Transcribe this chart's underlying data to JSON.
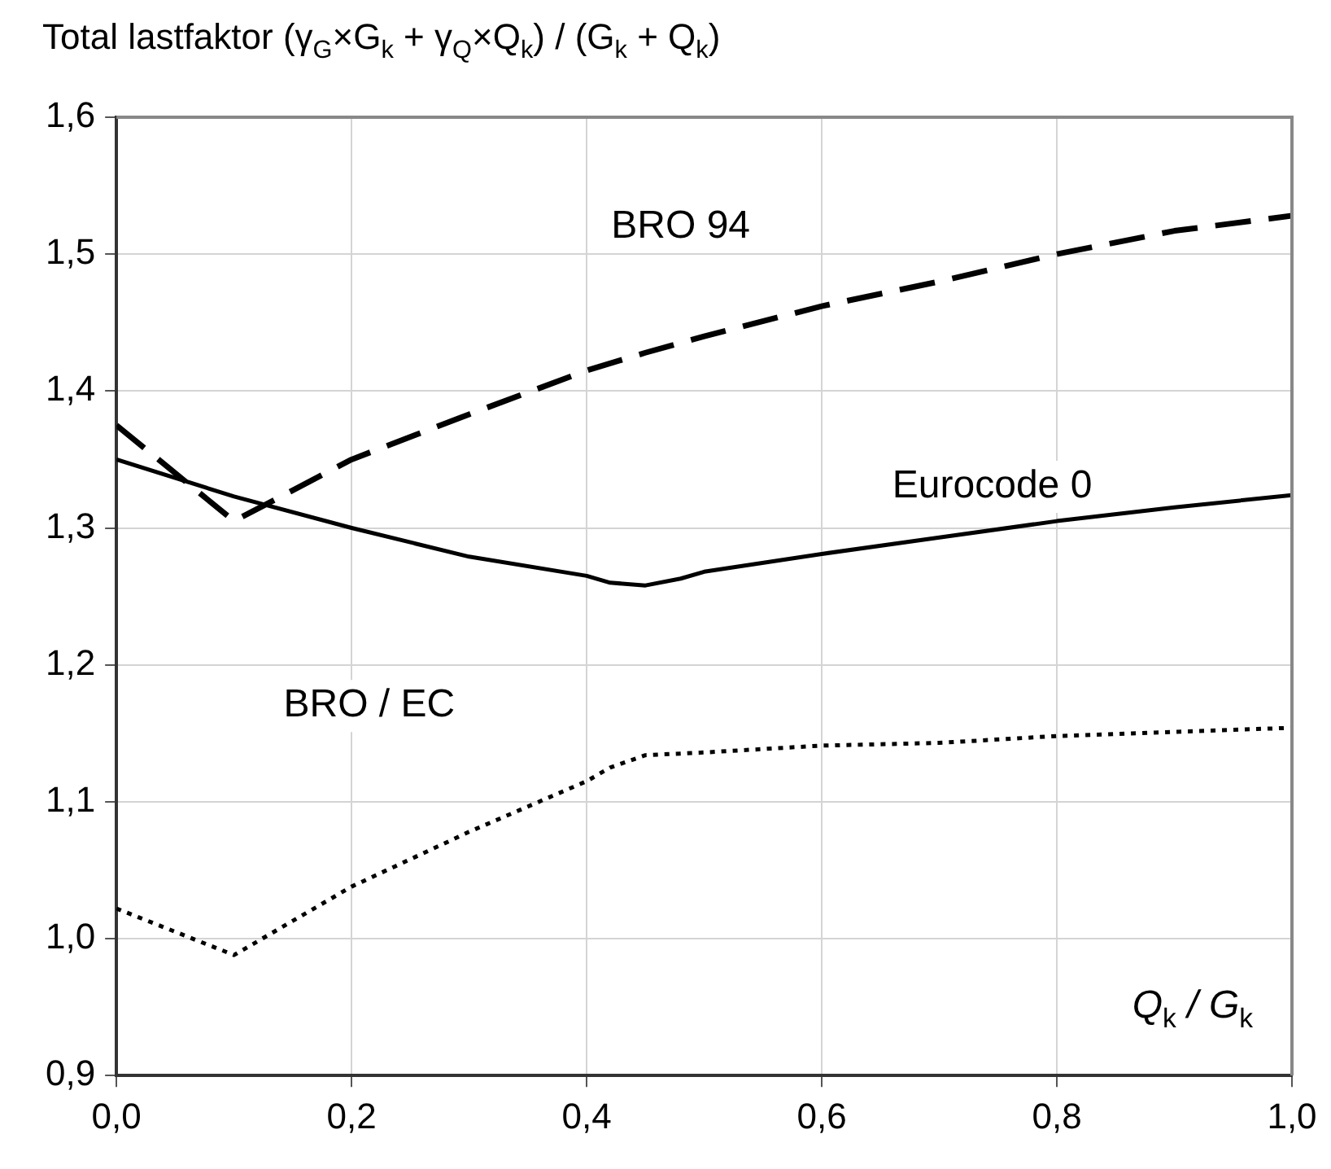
{
  "chart_data": {
    "type": "line",
    "ylabel": "Total lastfaktor (γ$_{G}$×G$_{k}$ + γ$_{Q}$×Q$_{k}$) / (G$_{k}$ + Q$_{k}$)",
    "xlabel": "Q$_{k}$ / G$_{k}$",
    "series": [
      {
        "name": "BRO 94",
        "color": "#000000",
        "line_style": "dashed",
        "x": [
          0,
          0.1,
          0.2,
          0.3,
          0.4,
          0.45,
          0.5,
          0.6,
          0.7,
          0.8,
          0.9,
          1.0
        ],
        "values": [
          1.375,
          1.305,
          1.35,
          1.383,
          1.415,
          1.428,
          1.44,
          1.462,
          1.48,
          1.5,
          1.517,
          1.528
        ]
      },
      {
        "name": "Eurocode 0",
        "color": "#000000",
        "line_style": "solid",
        "x": [
          0,
          0.1,
          0.2,
          0.3,
          0.4,
          0.42,
          0.45,
          0.48,
          0.5,
          0.6,
          0.7,
          0.8,
          0.9,
          1.0
        ],
        "values": [
          1.35,
          1.323,
          1.3,
          1.279,
          1.265,
          1.26,
          1.258,
          1.263,
          1.268,
          1.281,
          1.293,
          1.305,
          1.315,
          1.324
        ]
      },
      {
        "name": "BRO / EC",
        "color": "#000000",
        "line_style": "dotted",
        "x": [
          0,
          0.1,
          0.2,
          0.3,
          0.4,
          0.42,
          0.45,
          0.5,
          0.6,
          0.7,
          0.8,
          0.9,
          1.0
        ],
        "values": [
          1.022,
          0.988,
          1.038,
          1.078,
          1.115,
          1.125,
          1.134,
          1.136,
          1.141,
          1.143,
          1.148,
          1.151,
          1.154
        ]
      }
    ],
    "xlim": [
      0,
      1.0
    ],
    "xticks": [
      {
        "value": 0,
        "label": "0,0"
      },
      {
        "value": 0.2,
        "label": "0,2"
      },
      {
        "value": 0.4,
        "label": "0,4"
      },
      {
        "value": 0.6,
        "label": "0,6"
      },
      {
        "value": 0.8,
        "label": "0,8"
      },
      {
        "value": 1.0,
        "label": "1,0"
      }
    ],
    "ylim": [
      0.9,
      1.6
    ],
    "yticks": [
      {
        "value": 0.9,
        "label": "0,9"
      },
      {
        "value": 1.0,
        "label": "1,0"
      },
      {
        "value": 1.1,
        "label": "1,1"
      },
      {
        "value": 1.2,
        "label": "1,2"
      },
      {
        "value": 1.3,
        "label": "1,3"
      },
      {
        "value": 1.4,
        "label": "1,4"
      },
      {
        "value": 1.5,
        "label": "1,5"
      },
      {
        "value": 1.6,
        "label": "1,6"
      }
    ],
    "grid": true,
    "legend": false,
    "marker": "none"
  }
}
